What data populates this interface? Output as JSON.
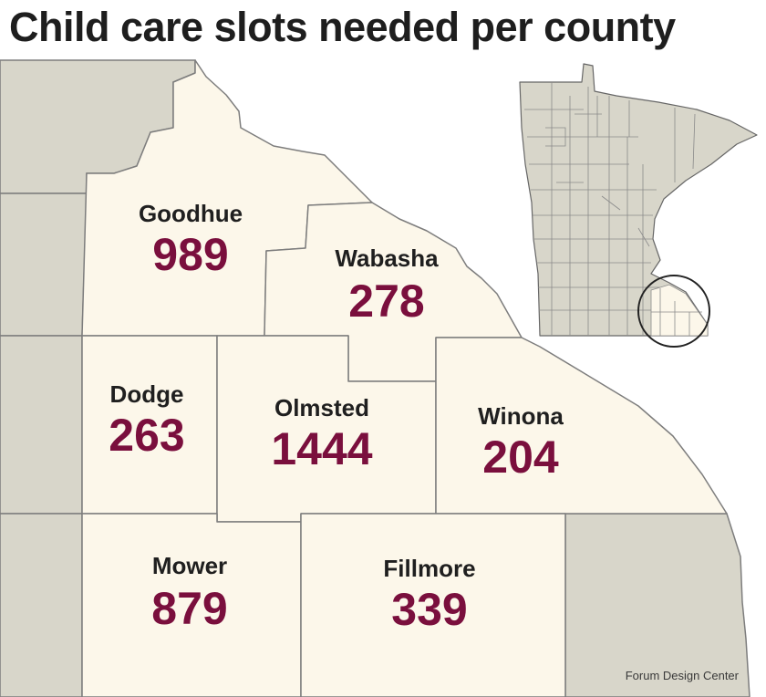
{
  "title": "Child care slots needed per county",
  "credit": "Forum Design Center",
  "colors": {
    "highlight_fill": "#fcf7ea",
    "other_fill": "#d8d6ca",
    "border": "#7d7d7d",
    "value_text": "#7a0f3d",
    "name_text": "#1f1f1f"
  },
  "counties": [
    {
      "name": "Goodhue",
      "value": "989"
    },
    {
      "name": "Wabasha",
      "value": "278"
    },
    {
      "name": "Dodge",
      "value": "263"
    },
    {
      "name": "Olmsted",
      "value": "1444"
    },
    {
      "name": "Winona",
      "value": "204"
    },
    {
      "name": "Mower",
      "value": "879"
    },
    {
      "name": "Fillmore",
      "value": "339"
    }
  ]
}
